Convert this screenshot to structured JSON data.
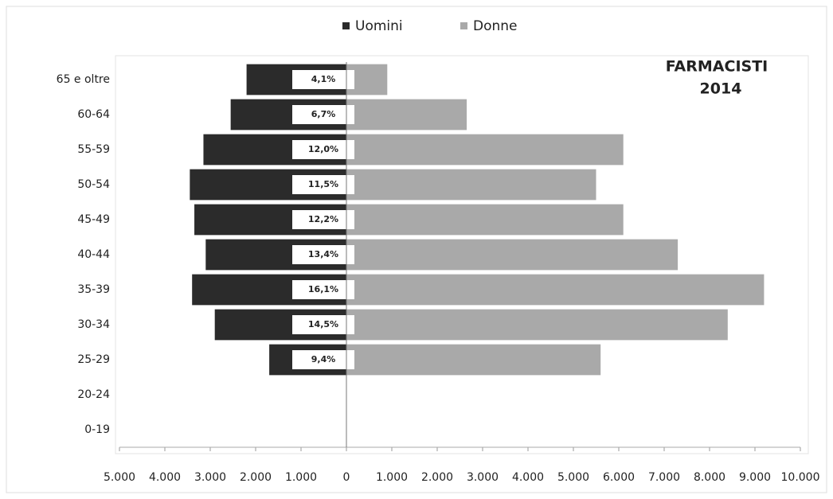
{
  "chart_data": {
    "type": "pyramid",
    "annotation": [
      "FARMACISTI",
      "2014"
    ],
    "categories": [
      "0-19",
      "20-24",
      "25-29",
      "30-34",
      "35-39",
      "40-44",
      "45-49",
      "50-54",
      "55-59",
      "60-64",
      "65 e oltre"
    ],
    "series": [
      {
        "name": "Uomini",
        "color": "#2b2b2b",
        "values": [
          0,
          0,
          -1700,
          -2900,
          -3400,
          -3100,
          -3350,
          -3450,
          -3150,
          -2550,
          -2200
        ]
      },
      {
        "name": "Donne",
        "color": "#a9a9a9",
        "values": [
          0,
          0,
          5600,
          8400,
          9200,
          7300,
          6100,
          5500,
          6100,
          2650,
          900
        ]
      }
    ],
    "share_labels": [
      null,
      null,
      "9,4%",
      "14,5%",
      "16,1%",
      "13,4%",
      "12,2%",
      "11,5%",
      "12,0%",
      "6,7%",
      "4,1%"
    ],
    "xlim": [
      -5000,
      10000
    ],
    "xticks": [
      {
        "value": -5000,
        "label": "5.000"
      },
      {
        "value": -4000,
        "label": "4.000"
      },
      {
        "value": -3000,
        "label": "3.000"
      },
      {
        "value": -2000,
        "label": "2.000"
      },
      {
        "value": -1000,
        "label": "1.000"
      },
      0,
      {
        "value": 1000,
        "label": "1.000"
      },
      {
        "value": 2000,
        "label": "2.000"
      },
      {
        "value": 3000,
        "label": "3.000"
      },
      {
        "value": 4000,
        "label": "4.000"
      },
      {
        "value": 5000,
        "label": "5.000"
      },
      {
        "value": 6000,
        "label": "6.000"
      },
      {
        "value": 7000,
        "label": "7.000"
      },
      {
        "value": 8000,
        "label": "8.000"
      },
      {
        "value": 9000,
        "label": "9.000"
      },
      {
        "value": 10000,
        "label": "10.000"
      }
    ],
    "legend": "top"
  }
}
